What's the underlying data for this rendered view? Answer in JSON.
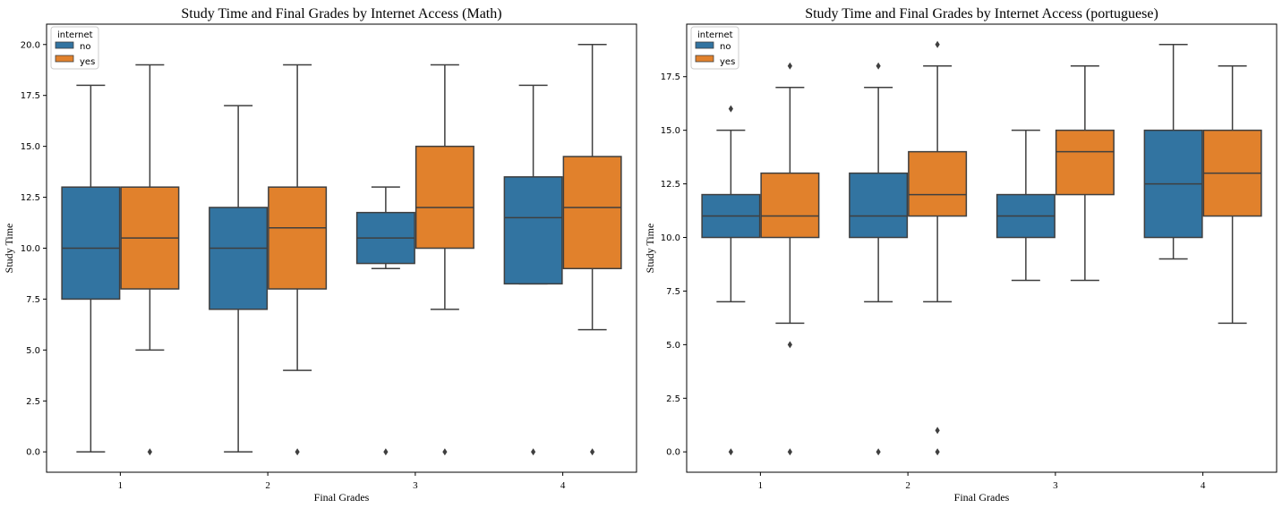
{
  "colors": {
    "no": "#3274a1",
    "yes": "#e1812c",
    "line": "#3f3f3f"
  },
  "chart_data": [
    {
      "type": "box",
      "title": "Study Time and Final Grades by Internet Access (Math)",
      "xlabel": "Final Grades",
      "ylabel": "Study Time",
      "categories": [
        "1",
        "2",
        "3",
        "4"
      ],
      "ylim": [
        -1,
        21
      ],
      "yticks": [
        0.0,
        2.5,
        5.0,
        7.5,
        10.0,
        12.5,
        15.0,
        17.5,
        20.0
      ],
      "ytick_labels": [
        "0.0",
        "2.5",
        "5.0",
        "7.5",
        "10.0",
        "12.5",
        "15.0",
        "17.5",
        "20.0"
      ],
      "legend": {
        "title": "internet",
        "position": "top-left",
        "entries": [
          "no",
          "yes"
        ]
      },
      "series": [
        {
          "name": "no",
          "boxes": [
            {
              "whislo": 0,
              "q1": 7.5,
              "med": 10,
              "q3": 13,
              "whishi": 18,
              "fliers": []
            },
            {
              "whislo": 0,
              "q1": 7,
              "med": 10,
              "q3": 12,
              "whishi": 17,
              "fliers": []
            },
            {
              "whislo": 9,
              "q1": 9.25,
              "med": 10.5,
              "q3": 11.75,
              "whishi": 13,
              "fliers": [
                0
              ]
            },
            {
              "whislo": 8.25,
              "q1": 8.25,
              "med": 11.5,
              "q3": 13.5,
              "whishi": 18,
              "fliers": [
                0
              ]
            }
          ]
        },
        {
          "name": "yes",
          "boxes": [
            {
              "whislo": 5,
              "q1": 8,
              "med": 10.5,
              "q3": 13,
              "whishi": 19,
              "fliers": [
                0
              ]
            },
            {
              "whislo": 4,
              "q1": 8,
              "med": 11,
              "q3": 13,
              "whishi": 19,
              "fliers": [
                0
              ]
            },
            {
              "whislo": 7,
              "q1": 10,
              "med": 12,
              "q3": 15,
              "whishi": 19,
              "fliers": [
                0
              ]
            },
            {
              "whislo": 6,
              "q1": 9,
              "med": 12,
              "q3": 14.5,
              "whishi": 20,
              "fliers": [
                0
              ]
            }
          ]
        }
      ]
    },
    {
      "type": "box",
      "title": "Study Time and Final Grades by Internet Access (portuguese)",
      "xlabel": "Final Grades",
      "ylabel": "Study Time",
      "categories": [
        "1",
        "2",
        "3",
        "4"
      ],
      "ylim": [
        -0.95,
        19.95
      ],
      "yticks": [
        0.0,
        2.5,
        5.0,
        7.5,
        10.0,
        12.5,
        15.0,
        17.5
      ],
      "ytick_labels": [
        "0.0",
        "2.5",
        "5.0",
        "7.5",
        "10.0",
        "12.5",
        "15.0",
        "17.5"
      ],
      "legend": {
        "title": "internet",
        "position": "top-left",
        "entries": [
          "no",
          "yes"
        ]
      },
      "series": [
        {
          "name": "no",
          "boxes": [
            {
              "whislo": 7,
              "q1": 10,
              "med": 11,
              "q3": 12,
              "whishi": 15,
              "fliers": [
                16,
                0
              ]
            },
            {
              "whislo": 7,
              "q1": 10,
              "med": 11,
              "q3": 13,
              "whishi": 17,
              "fliers": [
                18,
                0
              ]
            },
            {
              "whislo": 8,
              "q1": 10,
              "med": 11,
              "q3": 12,
              "whishi": 15,
              "fliers": []
            },
            {
              "whislo": 9,
              "q1": 10,
              "med": 12.5,
              "q3": 15,
              "whishi": 19,
              "fliers": []
            }
          ]
        },
        {
          "name": "yes",
          "boxes": [
            {
              "whislo": 6,
              "q1": 10,
              "med": 11,
              "q3": 13,
              "whishi": 17,
              "fliers": [
                18,
                5,
                0
              ]
            },
            {
              "whislo": 7,
              "q1": 11,
              "med": 12,
              "q3": 14,
              "whishi": 18,
              "fliers": [
                19,
                1,
                0
              ]
            },
            {
              "whislo": 8,
              "q1": 12,
              "med": 14,
              "q3": 15,
              "whishi": 18,
              "fliers": []
            },
            {
              "whislo": 6,
              "q1": 11,
              "med": 13,
              "q3": 15,
              "whishi": 18,
              "fliers": []
            }
          ]
        }
      ]
    }
  ]
}
